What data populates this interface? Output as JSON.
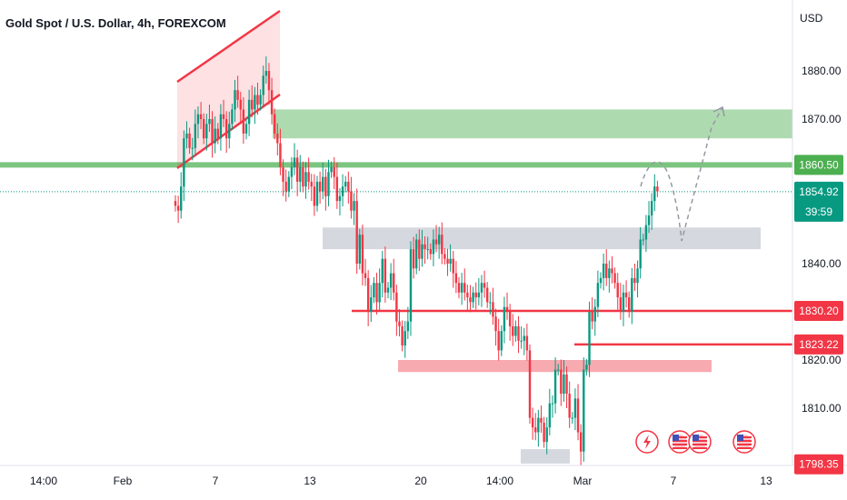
{
  "header": {
    "title": "Gold Spot / U.S. Dollar, 4h, FOREXCOM"
  },
  "axis": {
    "currency": "USD",
    "price_ticks": [
      "1880.00",
      "1870.00",
      "1840.00",
      "1820.00",
      "1810.00"
    ],
    "date_ticks": [
      "14:00",
      "Feb",
      "7",
      "13",
      "20",
      "14:00",
      "Mar",
      "7",
      "13"
    ]
  },
  "price_labels": [
    {
      "text": "1860.50",
      "value": 1860.5,
      "color": "#4caf50"
    },
    {
      "text": "1854.92",
      "sub": "39:59",
      "value": 1854.92,
      "color": "#089981"
    },
    {
      "text": "1830.20",
      "value": 1830.2,
      "color": "#f23645"
    },
    {
      "text": "1823.22",
      "value": 1823.22,
      "color": "#f23645"
    },
    {
      "text": "1798.35",
      "value": 1798.35,
      "color": "#f23645"
    }
  ],
  "colors": {
    "bull": "#089981",
    "bear": "#f23645",
    "green_zone": "#a5d6a7",
    "gray_zone": "#d1d4dc",
    "pink_zone": "#f7a1a8",
    "channel": "#f23645"
  },
  "icons": [
    "lightning-event-icon",
    "us-flag-event-icon",
    "us-flag-event-icon",
    "us-flag-event-icon"
  ],
  "chart_data": {
    "type": "candlestick",
    "title": "Gold Spot / U.S. Dollar, 4h, FOREXCOM",
    "ylabel": "USD",
    "ylim": [
      1795,
      1890
    ],
    "zones": [
      {
        "kind": "supply",
        "low": 1866,
        "high": 1872
      },
      {
        "kind": "support",
        "low": 1843,
        "high": 1847.5
      },
      {
        "kind": "demand",
        "low": 1817.5,
        "high": 1820
      },
      {
        "kind": "base",
        "low": 1798.5,
        "high": 1801.5
      }
    ],
    "levels": [
      1860.5,
      1830.2,
      1823.22
    ],
    "last_price": 1854.92,
    "projection": [
      1860,
      1846,
      1871
    ],
    "closes": [
      1852,
      1851,
      1856,
      1866,
      1867,
      1864,
      1864,
      1869,
      1871,
      1870,
      1866,
      1869,
      1870,
      1865,
      1868,
      1866,
      1871,
      1870,
      1866,
      1869,
      1872,
      1876,
      1874,
      1872,
      1867,
      1869,
      1874,
      1872,
      1875,
      1873,
      1875,
      1879,
      1880,
      1876,
      1871,
      1867,
      1865,
      1860,
      1857,
      1855,
      1858,
      1860,
      1862,
      1857,
      1860,
      1856,
      1859,
      1857,
      1856,
      1852,
      1857,
      1855,
      1858,
      1854,
      1859,
      1860,
      1858,
      1853,
      1854,
      1856,
      1857,
      1855,
      1851,
      1853,
      1840,
      1846,
      1838,
      1837,
      1830,
      1833,
      1836,
      1832,
      1836,
      1841,
      1834,
      1835,
      1838,
      1834,
      1828,
      1827,
      1823,
      1826,
      1828,
      1843,
      1839,
      1845,
      1841,
      1844,
      1843,
      1843,
      1842,
      1845,
      1844,
      1846,
      1842,
      1841,
      1840,
      1841,
      1838,
      1836,
      1834,
      1836,
      1834,
      1833,
      1832,
      1834,
      1833,
      1834,
      1836,
      1835,
      1832,
      1832,
      1829,
      1826,
      1822,
      1826,
      1831,
      1830,
      1827,
      1825,
      1827,
      1824,
      1824,
      1825,
      1822,
      1808,
      1806,
      1805,
      1808,
      1807,
      1803,
      1806,
      1811,
      1811,
      1818,
      1818,
      1813,
      1817,
      1813,
      1808,
      1808,
      1812,
      1805,
      1801,
      1818,
      1819,
      1830,
      1828,
      1831,
      1836,
      1837,
      1840,
      1837,
      1839,
      1838,
      1836,
      1833,
      1830,
      1834,
      1833,
      1830,
      1837,
      1836,
      1839,
      1845,
      1845,
      1848,
      1850,
      1853,
      1856,
      1855
    ]
  }
}
